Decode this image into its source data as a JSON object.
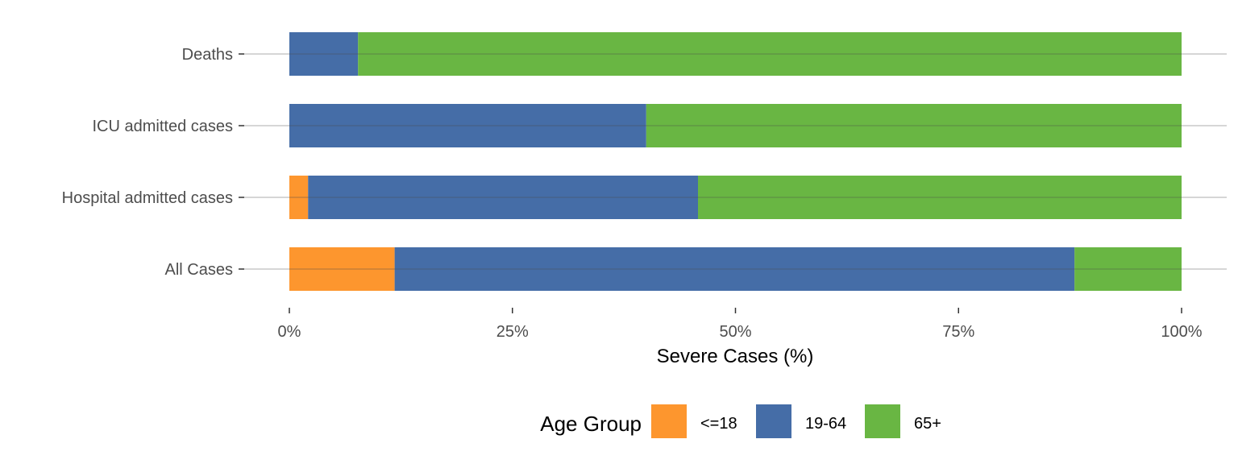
{
  "chart_data": {
    "type": "bar",
    "orientation": "horizontal",
    "stacked": true,
    "normalized": true,
    "categories": [
      "All Cases",
      "Hospital admitted cases",
      "ICU admitted cases",
      "Deaths"
    ],
    "series": [
      {
        "name": "<=18",
        "color": "#fd8d1c",
        "values": [
          11.8,
          2.1,
          0,
          0
        ]
      },
      {
        "name": "19-64",
        "color": "#35619f",
        "values": [
          76.2,
          43.7,
          40,
          7.7
        ]
      },
      {
        "name": "65+",
        "color": "#5cb033",
        "values": [
          12.0,
          54.2,
          60,
          92.3
        ]
      }
    ],
    "xlabel": "Severe Cases (%)",
    "ylabel": "",
    "xlim": [
      0,
      100
    ],
    "x_ticks": [
      0,
      25,
      50,
      75,
      100
    ],
    "x_tick_labels": [
      "0%",
      "25%",
      "50%",
      "75%",
      "100%"
    ],
    "legend_title": "Age Group",
    "legend_position": "bottom",
    "grid": "horizontal-major"
  }
}
